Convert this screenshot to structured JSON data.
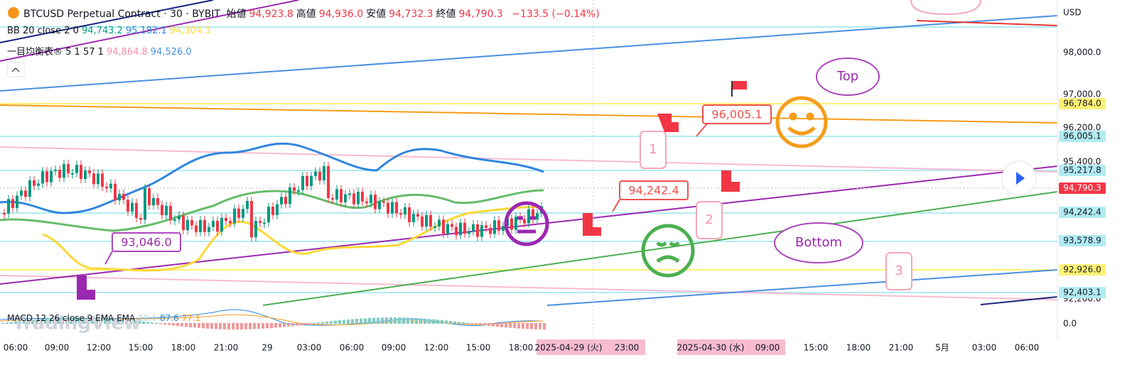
{
  "header": {
    "symbol": "BTCUSD Perpetual Contract · 30 · BYBIT",
    "ohlc": [
      {
        "label": "始値",
        "value": "94,923.8"
      },
      {
        "label": "高値",
        "value": "94,936.0"
      },
      {
        "label": "安値",
        "value": "94,732.3"
      },
      {
        "label": "終値",
        "value": "94,790.3"
      }
    ],
    "change": "−133.5 (−0.14%)"
  },
  "indicators": [
    {
      "name": "BB 20 close 2 0",
      "values": [
        "94,743.2",
        "95,182.1",
        "94,304.3"
      ]
    },
    {
      "name": "一目均衡表® 5 1 57 1",
      "values": [
        "94,864.8",
        "94,526.0"
      ]
    }
  ],
  "macd": {
    "name": "MACD 12 26 close 9 EMA EMA",
    "values": [
      "10.6",
      "87.6",
      "77.1"
    ]
  },
  "watermark": "TradingView",
  "price_axis": {
    "currency": "USD",
    "ticks": [
      "98,000.0",
      "97,000.0",
      "96,200.0",
      "95,400.0",
      "92,200.0"
    ],
    "macd_tick": "0.0",
    "badges": [
      "96,784.0",
      "96,005.1",
      "95,217.8",
      "94,790.3",
      "94,242.4",
      "93,578.9",
      "92,926.0",
      "92,403.1"
    ]
  },
  "time_axis": {
    "labels": [
      "06:00",
      "09:00",
      "12:00",
      "15:00",
      "18:00",
      "21:00",
      "29",
      "03:00",
      "06:00",
      "09:00",
      "12:00",
      "15:00",
      "18:00",
      "2025-04-29 (火)",
      "23:00",
      "2025-04-30 (水)",
      "09:00",
      "15:00",
      "18:00",
      "21:00",
      "5月",
      "03:00",
      "06:00"
    ]
  },
  "annotations": {
    "low_label": "93,046.0",
    "mid_label": "94,242.4",
    "high_label": "96,005.1",
    "top": "Top",
    "bottom": "Bottom",
    "wave": [
      "1",
      "2",
      "3"
    ]
  }
}
